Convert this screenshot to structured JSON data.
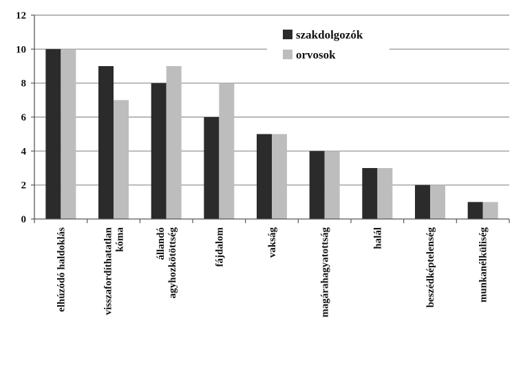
{
  "chart_data": {
    "type": "bar",
    "categories": [
      [
        "elhúzódó haldoklás"
      ],
      [
        "visszafordíthatatlan",
        "kóma"
      ],
      [
        "állandó",
        "agyhozkötöttség"
      ],
      [
        "fájdalom"
      ],
      [
        "vakság"
      ],
      [
        "magárahagyatottság"
      ],
      [
        "halál"
      ],
      [
        "beszédképtelenség"
      ],
      [
        "munkanélküliség"
      ]
    ],
    "series": [
      {
        "name": "szakdolgozók",
        "color": "#2b2b2b",
        "values": [
          10,
          9,
          8,
          6,
          5,
          4,
          3,
          2,
          1
        ]
      },
      {
        "name": "orvosok",
        "color": "#bdbdbd",
        "values": [
          10,
          7,
          9,
          8,
          5,
          4,
          3,
          2,
          1
        ]
      }
    ],
    "ylim": [
      0,
      12
    ],
    "yticks": [
      0,
      2,
      4,
      6,
      8,
      10,
      12
    ],
    "grid": true,
    "legend_position": "top-right"
  }
}
